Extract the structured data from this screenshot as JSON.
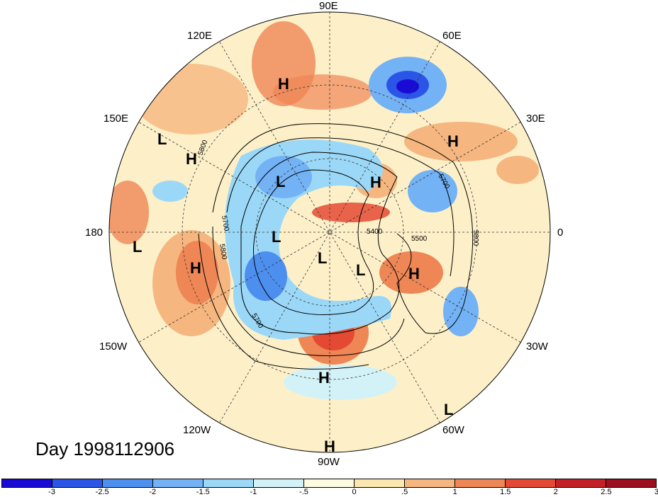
{
  "map": {
    "projection": "polar-stereographic-north",
    "longitude_labels": [
      "90E",
      "60E",
      "30E",
      "0",
      "30W",
      "60W",
      "90W",
      "120W",
      "150W",
      "180",
      "150E",
      "120E"
    ],
    "pressure_centers": [
      {
        "label": "H"
      },
      {
        "label": "H"
      },
      {
        "label": "H"
      },
      {
        "label": "H"
      },
      {
        "label": "H"
      },
      {
        "label": "H"
      },
      {
        "label": "H"
      },
      {
        "label": "H"
      },
      {
        "label": "L"
      },
      {
        "label": "L"
      },
      {
        "label": "L"
      },
      {
        "label": "L"
      },
      {
        "label": "L"
      },
      {
        "label": "L"
      },
      {
        "label": "L"
      }
    ],
    "contour_labels": [
      "5800",
      "5700",
      "5800",
      "5400",
      "5500",
      "5700",
      "5800",
      "5700"
    ]
  },
  "day_label": "Day 1998112906",
  "colorbar": {
    "colors": [
      "#1a0ad6",
      "#2b55e6",
      "#4d8fef",
      "#73b2f5",
      "#9bd8f7",
      "#d3f2f7",
      "#fffbe0",
      "#fde7b0",
      "#f6b67f",
      "#ef8656",
      "#e44a33",
      "#c41f26",
      "#9b0f1e"
    ],
    "ticks": [
      "-3",
      "-2.5",
      "-2",
      "-1.5",
      "-1",
      "-.5",
      "0",
      ".5",
      "1",
      "1.5",
      "2",
      "2.5",
      "3"
    ]
  }
}
